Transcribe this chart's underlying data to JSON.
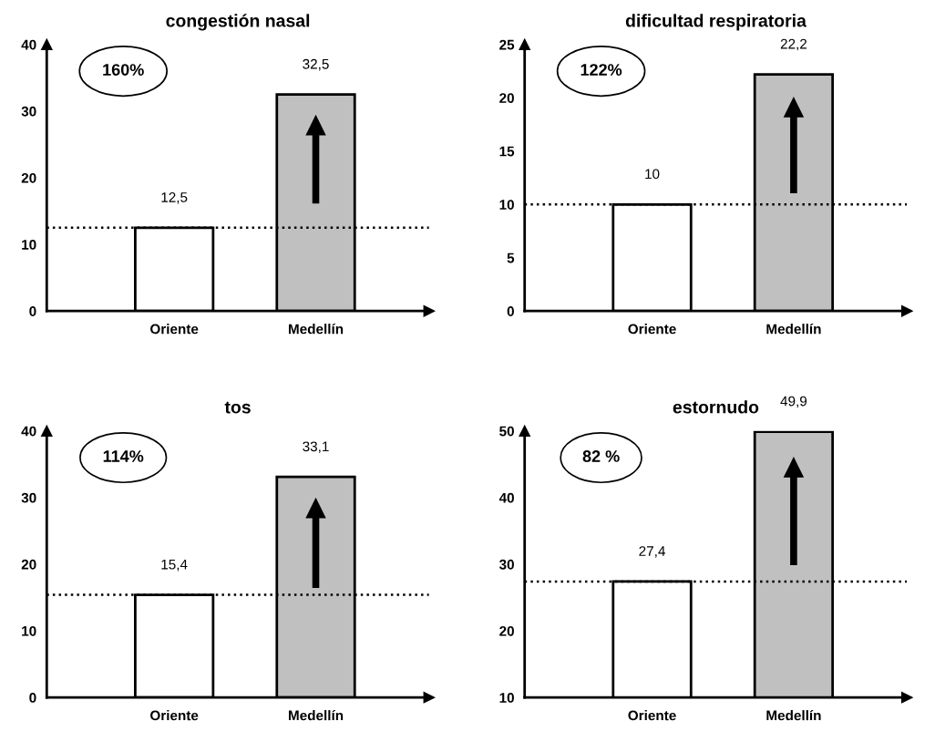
{
  "chart_data": [
    {
      "type": "bar",
      "title": "congestión nasal",
      "categories": [
        "Oriente",
        "Medellín"
      ],
      "values": [
        12.5,
        32.5
      ],
      "colors": [
        "#ffffff",
        "#c0c0c0"
      ],
      "value_labels": [
        "12,5",
        "32,5"
      ],
      "ylim": [
        0,
        40
      ],
      "yticks": [
        0,
        10,
        20,
        30,
        40
      ],
      "grid": false,
      "ref_lines": [
        {
          "axis": "y",
          "value": 12.5,
          "line_style": "dotted",
          "color": "#000000"
        }
      ],
      "annotations": [
        "160%"
      ]
    },
    {
      "type": "bar",
      "title": "dificultad respiratoria",
      "categories": [
        "Oriente",
        "Medellín"
      ],
      "values": [
        10,
        22.2
      ],
      "colors": [
        "#ffffff",
        "#c0c0c0"
      ],
      "value_labels": [
        "10",
        "22,2"
      ],
      "ylim": [
        0,
        25
      ],
      "yticks": [
        0,
        5,
        10,
        15,
        20,
        25
      ],
      "grid": false,
      "ref_lines": [
        {
          "axis": "y",
          "value": 10,
          "line_style": "dotted",
          "color": "#000000"
        }
      ],
      "annotations": [
        "122%"
      ]
    },
    {
      "type": "bar",
      "title": "tos",
      "categories": [
        "Oriente",
        "Medellín"
      ],
      "values": [
        15.4,
        33.1
      ],
      "colors": [
        "#ffffff",
        "#c0c0c0"
      ],
      "value_labels": [
        "15,4",
        "33,1"
      ],
      "ylim": [
        0,
        40
      ],
      "yticks": [
        0,
        10,
        20,
        30,
        40
      ],
      "grid": false,
      "ref_lines": [
        {
          "axis": "y",
          "value": 15.4,
          "line_style": "dotted",
          "color": "#000000"
        }
      ],
      "annotations": [
        "114%"
      ]
    },
    {
      "type": "bar",
      "title": "estornudo",
      "categories": [
        "Oriente",
        "Medellín"
      ],
      "values": [
        27.4,
        49.9
      ],
      "colors": [
        "#ffffff",
        "#c0c0c0"
      ],
      "value_labels": [
        "27,4",
        "49,9"
      ],
      "ylim": [
        10,
        50
      ],
      "yticks": [
        10,
        20,
        30,
        40,
        50
      ],
      "grid": false,
      "ref_lines": [
        {
          "axis": "y",
          "value": 27.4,
          "line_style": "dotted",
          "color": "#000000"
        }
      ],
      "annotations": [
        "82 %"
      ]
    }
  ]
}
